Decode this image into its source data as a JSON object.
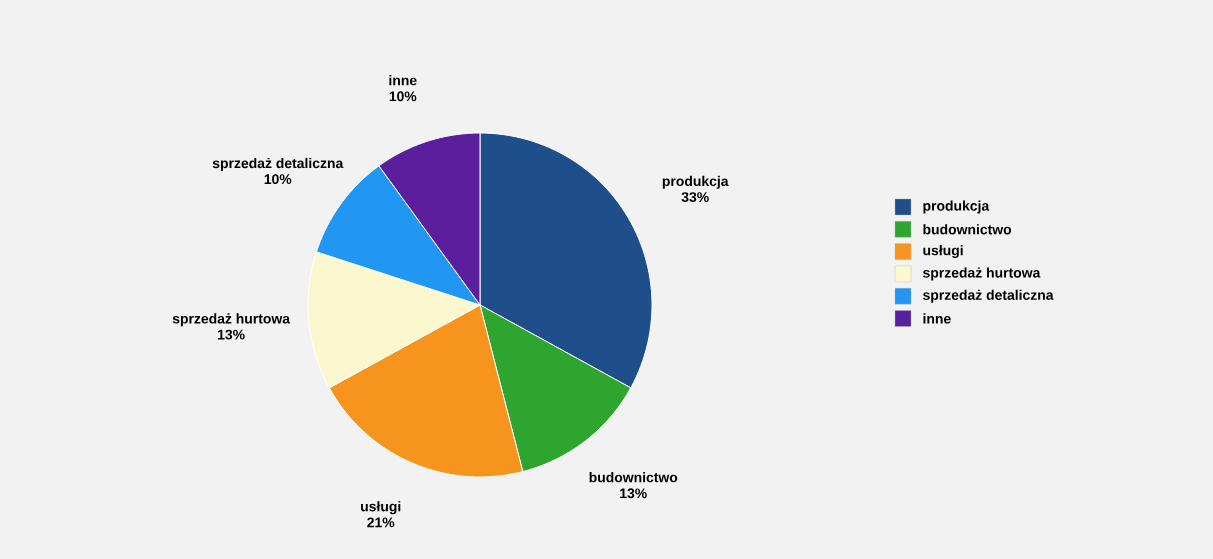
{
  "chart_data": {
    "type": "pie",
    "categories": [
      "produkcja",
      "budownictwo",
      "usługi",
      "sprzedaż hurtowa",
      "sprzedaż detaliczna",
      "inne"
    ],
    "values": [
      33,
      13,
      21,
      13,
      10,
      10
    ],
    "value_labels": [
      "33%",
      "13%",
      "21%",
      "13%",
      "10%",
      "10%"
    ],
    "colors": [
      "#1f4f8a",
      "#2ea52e",
      "#f7941d",
      "#fbf8d0",
      "#2196f3",
      "#5b1f9e"
    ],
    "legend": "right"
  }
}
